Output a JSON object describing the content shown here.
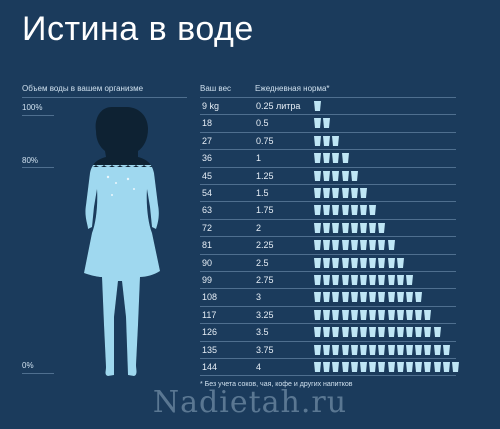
{
  "title": "Истина в воде",
  "left_label": "Объем воды в вашем организме",
  "percent_labels": [
    "100%",
    "80%",
    "0%"
  ],
  "headers": {
    "weight": "Ваш вес",
    "norm": "Ежедневная норма*"
  },
  "rows": [
    {
      "weight": "9 kg",
      "norm": "0.25 литра",
      "glasses": 1
    },
    {
      "weight": "18",
      "norm": "0.5",
      "glasses": 2
    },
    {
      "weight": "27",
      "norm": "0.75",
      "glasses": 3
    },
    {
      "weight": "36",
      "norm": "1",
      "glasses": 4
    },
    {
      "weight": "45",
      "norm": "1.25",
      "glasses": 5
    },
    {
      "weight": "54",
      "norm": "1.5",
      "glasses": 6
    },
    {
      "weight": "63",
      "norm": "1.75",
      "glasses": 7
    },
    {
      "weight": "72",
      "norm": "2",
      "glasses": 8
    },
    {
      "weight": "81",
      "norm": "2.25",
      "glasses": 9
    },
    {
      "weight": "90",
      "norm": "2.5",
      "glasses": 10
    },
    {
      "weight": "99",
      "norm": "2.75",
      "glasses": 11
    },
    {
      "weight": "108",
      "norm": "3",
      "glasses": 12
    },
    {
      "weight": "117",
      "norm": "3.25",
      "glasses": 13
    },
    {
      "weight": "126",
      "norm": "3.5",
      "glasses": 14
    },
    {
      "weight": "135",
      "norm": "3.75",
      "glasses": 15
    },
    {
      "weight": "144",
      "norm": "4",
      "glasses": 16
    }
  ],
  "footnote": "* Без учета соков, чая, кофе и других напитков",
  "watermark": "Nadietah.ru",
  "colors": {
    "background": "#1b3b5c",
    "silhouette_dark": "#0e2233",
    "water": "#9fd8ef",
    "glass": "#bfe6f5"
  }
}
